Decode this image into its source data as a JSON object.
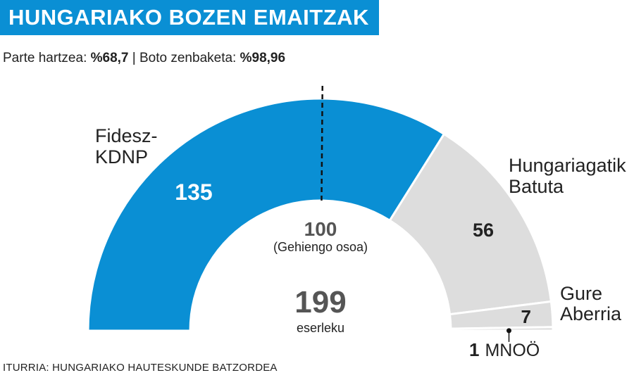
{
  "header": {
    "title": "HUNGARIAKO BOZEN EMAITZAK",
    "subtitle": {
      "turnout_label": "Parte hartzea: ",
      "turnout_value": "%68,7",
      "separator": " | ",
      "count_label": "Boto zenbaketa: ",
      "count_value": "%98,96"
    }
  },
  "footer": {
    "source": "ITURRIA: HUNGARIAKO HAUTESKUNDE BATZORDEA"
  },
  "colors": {
    "title_bg": "#0a8fd4",
    "fidesz": "#0a8fd4",
    "other": "#dddddd",
    "dark": "#222222",
    "value_gray": "#555555"
  },
  "chart_data": {
    "type": "pie",
    "chart_style": "semicircle-parliament",
    "total_seats": 199,
    "total_label": "eserleku",
    "majority": {
      "value": 100,
      "label": "(Gehiengo osoa)"
    },
    "series": [
      {
        "name": "Fidesz-KDNP",
        "name_lines": [
          "Fidesz-",
          "KDNP"
        ],
        "value": 135
      },
      {
        "name": "Hungariagatik Batuta",
        "name_lines": [
          "Hungariagatik",
          "Batuta"
        ],
        "value": 56
      },
      {
        "name": "Gure Aberria",
        "name_lines": [
          "Gure",
          "Aberria"
        ],
        "value": 7
      },
      {
        "name": "MNOÖ",
        "name_lines": [
          "MNOÖ"
        ],
        "value": 1
      }
    ]
  }
}
